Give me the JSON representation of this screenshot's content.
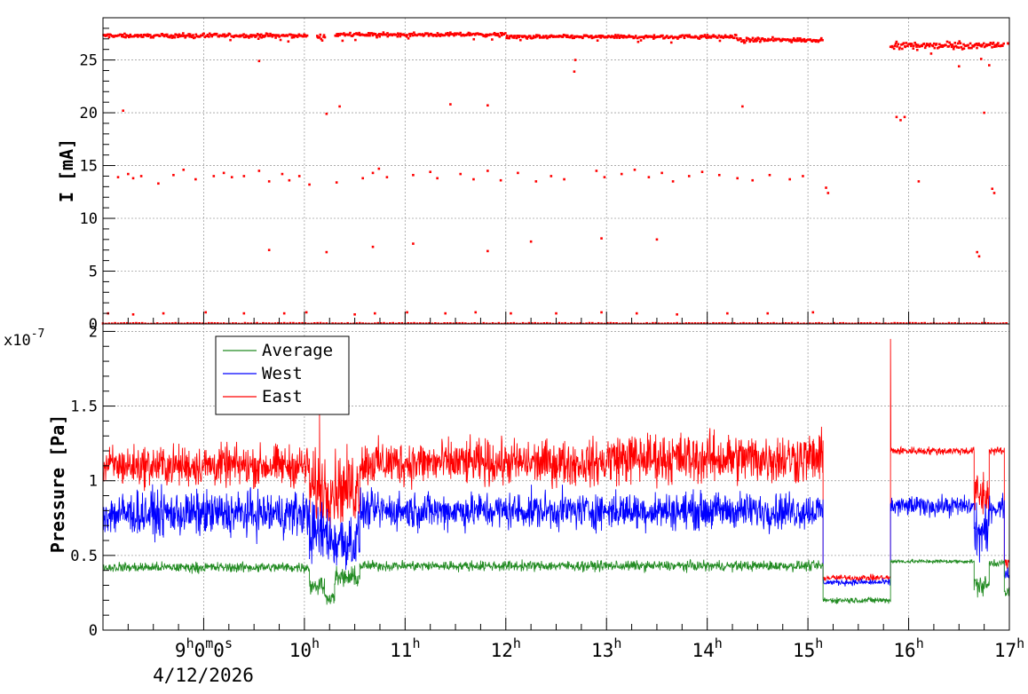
{
  "chart_data": [
    {
      "type": "scatter",
      "ylabel": "I [mA]",
      "ylim": [
        0,
        29
      ],
      "y_ticks": [
        0,
        5,
        10,
        15,
        20,
        25
      ],
      "grid": true,
      "x_unit": "hour",
      "xlim": [
        8.0,
        17.0
      ],
      "x_major_ticks": [
        9,
        10,
        11,
        12,
        13,
        14,
        15,
        16,
        17
      ],
      "x_minor_step": 0.25,
      "series": [
        {
          "color": "#ff0000",
          "marker": "square",
          "main_band": [
            {
              "x_range": [
                8.0,
                10.03
              ],
              "level": 27.3,
              "spread": 0.25
            },
            {
              "x_range": [
                10.12,
                10.21
              ],
              "level": 27.2,
              "spread": 0.25
            },
            {
              "x_range": [
                10.3,
                12.0
              ],
              "level": 27.4,
              "spread": 0.25
            },
            {
              "x_range": [
                12.0,
                14.3
              ],
              "level": 27.2,
              "spread": 0.25
            },
            {
              "x_range": [
                14.3,
                15.15
              ],
              "level": 26.9,
              "spread": 0.3
            },
            {
              "x_range": [
                15.82,
                16.95
              ],
              "level": 26.4,
              "spread": 0.4
            },
            {
              "x_range": [
                16.98,
                17.0
              ],
              "level": 26.5,
              "spread": 0.3
            }
          ],
          "zero_band": {
            "x_range": [
              8.0,
              17.0
            ],
            "level": 0.0
          },
          "points": [
            [
              8.05,
              1.0
            ],
            [
              8.3,
              0.9
            ],
            [
              8.6,
              1.0
            ],
            [
              9.02,
              1.1
            ],
            [
              9.4,
              1.0
            ],
            [
              9.8,
              1.0
            ],
            [
              10.02,
              1.1
            ],
            [
              10.5,
              0.9
            ],
            [
              10.7,
              1.0
            ],
            [
              11.02,
              1.1
            ],
            [
              11.4,
              1.0
            ],
            [
              11.7,
              1.1
            ],
            [
              12.05,
              1.0
            ],
            [
              12.5,
              1.0
            ],
            [
              12.95,
              1.1
            ],
            [
              13.3,
              1.0
            ],
            [
              13.7,
              0.9
            ],
            [
              14.2,
              1.0
            ],
            [
              14.6,
              1.0
            ],
            [
              15.05,
              1.1
            ],
            [
              8.2,
              20.2
            ],
            [
              10.22,
              19.9
            ],
            [
              10.35,
              20.6
            ],
            [
              11.45,
              20.8
            ],
            [
              11.82,
              20.7
            ],
            [
              14.35,
              20.6
            ],
            [
              15.88,
              19.6
            ],
            [
              15.92,
              19.3
            ],
            [
              15.96,
              19.6
            ],
            [
              16.75,
              20.0
            ],
            [
              8.15,
              13.9
            ],
            [
              8.25,
              14.2
            ],
            [
              8.3,
              13.8
            ],
            [
              8.38,
              14.0
            ],
            [
              8.55,
              13.3
            ],
            [
              8.7,
              14.1
            ],
            [
              8.8,
              14.6
            ],
            [
              8.92,
              13.7
            ],
            [
              9.1,
              14.0
            ],
            [
              9.2,
              14.3
            ],
            [
              9.28,
              13.9
            ],
            [
              9.4,
              14.0
            ],
            [
              9.55,
              14.5
            ],
            [
              9.65,
              13.5
            ],
            [
              9.78,
              14.2
            ],
            [
              9.85,
              13.6
            ],
            [
              9.95,
              14.0
            ],
            [
              10.05,
              13.2
            ],
            [
              10.32,
              13.4
            ],
            [
              10.58,
              13.8
            ],
            [
              10.68,
              14.3
            ],
            [
              10.74,
              14.7
            ],
            [
              10.82,
              13.9
            ],
            [
              11.08,
              14.1
            ],
            [
              11.25,
              14.4
            ],
            [
              11.32,
              13.8
            ],
            [
              11.55,
              14.2
            ],
            [
              11.68,
              13.7
            ],
            [
              11.82,
              14.5
            ],
            [
              11.95,
              13.6
            ],
            [
              12.12,
              14.3
            ],
            [
              12.3,
              13.5
            ],
            [
              12.45,
              14.0
            ],
            [
              12.58,
              13.7
            ],
            [
              12.9,
              14.5
            ],
            [
              12.98,
              13.9
            ],
            [
              13.15,
              14.2
            ],
            [
              13.28,
              14.6
            ],
            [
              13.42,
              13.9
            ],
            [
              13.55,
              14.3
            ],
            [
              13.66,
              13.5
            ],
            [
              13.82,
              14.0
            ],
            [
              13.95,
              14.4
            ],
            [
              14.12,
              14.1
            ],
            [
              14.3,
              13.8
            ],
            [
              14.45,
              13.6
            ],
            [
              14.62,
              14.1
            ],
            [
              14.82,
              13.7
            ],
            [
              14.95,
              14.0
            ],
            [
              15.18,
              12.9
            ],
            [
              15.2,
              12.4
            ],
            [
              16.1,
              13.5
            ],
            [
              16.83,
              12.8
            ],
            [
              16.85,
              12.4
            ],
            [
              9.65,
              7.0
            ],
            [
              10.22,
              6.8
            ],
            [
              10.68,
              7.3
            ],
            [
              11.08,
              7.6
            ],
            [
              11.82,
              6.9
            ],
            [
              12.25,
              7.8
            ],
            [
              12.95,
              8.1
            ],
            [
              13.5,
              8.0
            ],
            [
              16.68,
              6.8
            ],
            [
              16.7,
              6.4
            ],
            [
              9.55,
              24.9
            ],
            [
              12.68,
              23.9
            ],
            [
              12.69,
              25.0
            ],
            [
              16.5,
              24.4
            ],
            [
              16.72,
              25.1
            ],
            [
              16.8,
              24.5
            ]
          ]
        }
      ]
    },
    {
      "type": "line",
      "ylabel": "Pressure [Pa]",
      "y_multiplier_label": "x10",
      "y_multiplier_exponent": "-7",
      "ylim": [
        0,
        2.05
      ],
      "y_ticks": [
        {
          "value": 0,
          "label": "0"
        },
        {
          "value": 0.5,
          "label": "0.5"
        },
        {
          "value": 1.0,
          "label": "1"
        },
        {
          "value": 1.5,
          "label": "1.5"
        },
        {
          "value": 2.0,
          "label": "2"
        }
      ],
      "y_scale_note": "values in units of 1e-7 Pa",
      "grid": true,
      "x_unit": "hour",
      "xlim": [
        8.0,
        17.0
      ],
      "x_major_ticks": [
        9,
        10,
        11,
        12,
        13,
        14,
        15,
        16,
        17
      ],
      "x_tick_labels": [
        {
          "base": "9",
          "sup": "h",
          "rest": [
            [
              "0",
              "m"
            ],
            [
              "0",
              "s"
            ]
          ]
        },
        {
          "base": "10",
          "sup": "h"
        },
        {
          "base": "11",
          "sup": "h"
        },
        {
          "base": "12",
          "sup": "h"
        },
        {
          "base": "13",
          "sup": "h"
        },
        {
          "base": "14",
          "sup": "h"
        },
        {
          "base": "15",
          "sup": "h"
        },
        {
          "base": "16",
          "sup": "h"
        },
        {
          "base": "17",
          "sup": "h"
        }
      ],
      "x_date_label": "4/12/2026",
      "legend": {
        "placement": "top-left"
      },
      "series": [
        {
          "name": "Average",
          "color": "#228b22",
          "draw_order": 3,
          "segments": [
            {
              "x": [
                8.0,
                10.05
              ],
              "base": 0.42,
              "noise": 0.05
            },
            {
              "x": [
                10.05,
                10.2
              ],
              "base": 0.3,
              "noise": 0.1
            },
            {
              "x": [
                10.2,
                10.3
              ],
              "base": 0.22,
              "noise": 0.06
            },
            {
              "x": [
                10.3,
                10.55
              ],
              "base": 0.35,
              "noise": 0.1
            },
            {
              "x": [
                10.55,
                15.15
              ],
              "base": 0.43,
              "noise": 0.05
            },
            {
              "x": [
                15.15,
                15.82
              ],
              "base": 0.2,
              "noise": 0.03
            },
            {
              "x": [
                15.82,
                16.65
              ],
              "base": 0.46,
              "noise": 0.02
            },
            {
              "x": [
                16.65,
                16.8
              ],
              "base": 0.3,
              "noise": 0.1
            },
            {
              "x": [
                16.8,
                16.95
              ],
              "base": 0.45,
              "noise": 0.04
            },
            {
              "x": [
                16.95,
                17.0
              ],
              "base": 0.25,
              "noise": 0.05
            }
          ]
        },
        {
          "name": "West",
          "color": "#0000ff",
          "draw_order": 2,
          "segments": [
            {
              "x": [
                8.0,
                10.05
              ],
              "base": 0.78,
              "noise": 0.22
            },
            {
              "x": [
                10.05,
                10.25
              ],
              "base": 0.65,
              "noise": 0.3
            },
            {
              "x": [
                10.25,
                10.55
              ],
              "base": 0.6,
              "noise": 0.3
            },
            {
              "x": [
                10.55,
                15.15
              ],
              "base": 0.8,
              "noise": 0.18
            },
            {
              "x": [
                15.15,
                15.82
              ],
              "base": 0.32,
              "noise": 0.03
            },
            {
              "x": [
                15.82,
                16.65
              ],
              "base": 0.83,
              "noise": 0.1
            },
            {
              "x": [
                16.65,
                16.8
              ],
              "base": 0.65,
              "noise": 0.25
            },
            {
              "x": [
                16.8,
                16.95
              ],
              "base": 0.82,
              "noise": 0.12
            },
            {
              "x": [
                16.95,
                17.0
              ],
              "base": 0.38,
              "noise": 0.05
            }
          ]
        },
        {
          "name": "East",
          "color": "#ff0000",
          "draw_order": 1,
          "segments": [
            {
              "x": [
                8.0,
                10.05
              ],
              "base": 1.1,
              "noise": 0.2
            },
            {
              "x": [
                10.05,
                10.55
              ],
              "base": 0.95,
              "noise": 0.35
            },
            {
              "x": [
                10.55,
                13.0
              ],
              "base": 1.12,
              "noise": 0.22
            },
            {
              "x": [
                13.0,
                15.15
              ],
              "base": 1.15,
              "noise": 0.25
            },
            {
              "x": [
                15.15,
                15.82
              ],
              "base": 0.35,
              "noise": 0.03
            },
            {
              "x": [
                15.82,
                16.65
              ],
              "base": 1.2,
              "noise": 0.04
            },
            {
              "x": [
                16.65,
                16.8
              ],
              "base": 0.9,
              "noise": 0.25
            },
            {
              "x": [
                16.8,
                16.95
              ],
              "base": 1.2,
              "noise": 0.04
            },
            {
              "x": [
                16.95,
                17.0
              ],
              "base": 0.45,
              "noise": 0.05
            }
          ],
          "peaks": [
            [
              10.15,
              1.45
            ],
            [
              15.82,
              1.95
            ]
          ]
        }
      ]
    }
  ]
}
